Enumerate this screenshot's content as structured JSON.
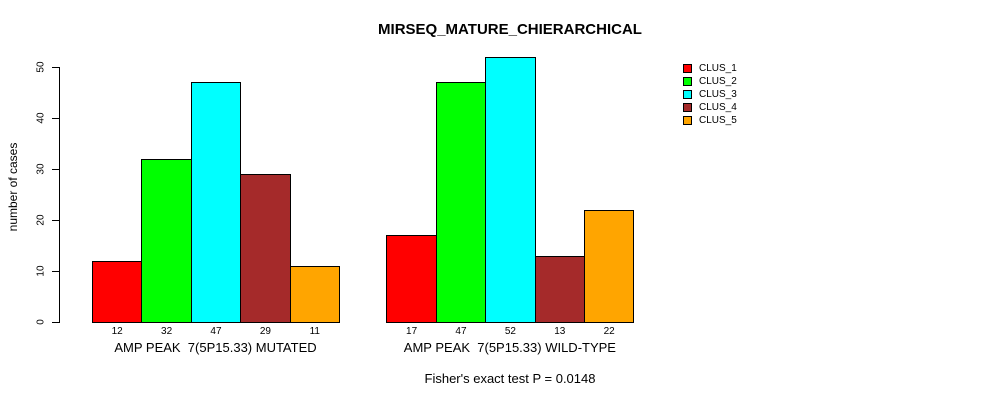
{
  "chart_data": {
    "type": "bar",
    "title": "MIRSEQ_MATURE_CHIERARCHICAL",
    "ylabel": "number of cases",
    "xlabel": "",
    "ylim": [
      0,
      52
    ],
    "yticks": [
      0,
      10,
      20,
      30,
      40,
      50
    ],
    "grid": false,
    "legend_position": "top-right",
    "bar_value_labels": true,
    "series": [
      {
        "name": "CLUS_1",
        "color": "#ff0000"
      },
      {
        "name": "CLUS_2",
        "color": "#00ff00"
      },
      {
        "name": "CLUS_3",
        "color": "#00ffff"
      },
      {
        "name": "CLUS_4",
        "color": "#a52a2a"
      },
      {
        "name": "CLUS_5",
        "color": "#ffa500"
      }
    ],
    "groups": [
      {
        "label": "AMP PEAK  7(5P15.33) MUTATED",
        "values": [
          12,
          32,
          47,
          29,
          11
        ]
      },
      {
        "label": "AMP PEAK  7(5P15.33) WILD-TYPE",
        "values": [
          17,
          47,
          52,
          13,
          22
        ]
      }
    ],
    "annotation": "Fisher's exact test P = 0.0148"
  }
}
